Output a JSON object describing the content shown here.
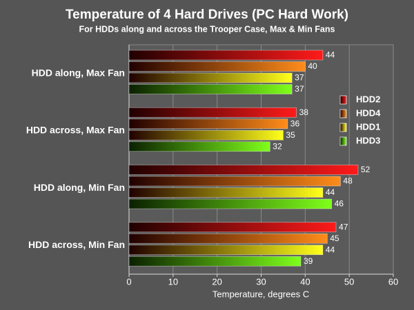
{
  "chart_data": {
    "type": "hbar",
    "title": "Temperature of 4 Hard Drives (PC Hard Work)",
    "subtitle": "For HDDs along and across the Trooper Case, Max & Min Fans",
    "x_label": "Temperature, degrees C",
    "categories": [
      "HDD along, Max Fan",
      "HDD across, Max Fan",
      "HDD along, Min Fan",
      "HDD across, Min Fan"
    ],
    "series": [
      {
        "name": "HDD2",
        "color": "#ff1a1a",
        "values": [
          44,
          38,
          52,
          47
        ]
      },
      {
        "name": "HDD4",
        "color": "#ff8c1a",
        "values": [
          40,
          36,
          48,
          45
        ]
      },
      {
        "name": "HDD1",
        "color": "#ffff1a",
        "values": [
          37,
          35,
          44,
          44
        ]
      },
      {
        "name": "HDD3",
        "color": "#7fff1a",
        "values": [
          37,
          32,
          46,
          39
        ]
      }
    ],
    "xlim": [
      0,
      60
    ],
    "xticks": [
      0,
      10,
      20,
      30,
      40,
      50,
      60
    ],
    "grid": true,
    "legend": "right"
  }
}
